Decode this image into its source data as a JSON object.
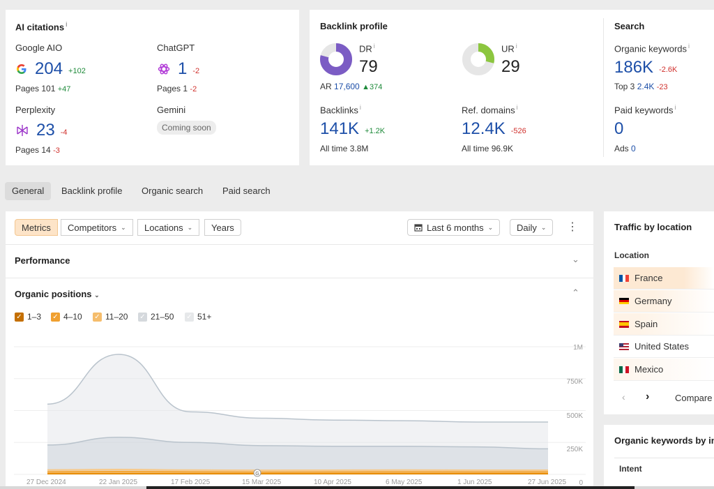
{
  "ai_citations": {
    "title": "AI citations",
    "info": "i",
    "google": {
      "name": "Google AIO",
      "value": "204",
      "delta": "+102",
      "pages_label": "Pages",
      "pages": "101",
      "pages_delta": "+47"
    },
    "chatgpt": {
      "name": "ChatGPT",
      "value": "1",
      "delta": "-2",
      "pages_label": "Pages",
      "pages": "1",
      "pages_delta": "-2"
    },
    "perplexity": {
      "name": "Perplexity",
      "value": "23",
      "delta": "-4",
      "pages_label": "Pages",
      "pages": "14",
      "pages_delta": "-3"
    },
    "gemini": {
      "name": "Gemini",
      "status": "Coming soon"
    }
  },
  "backlink_profile": {
    "title": "Backlink profile",
    "dr": {
      "label": "DR",
      "value": "79",
      "fill": 0.79
    },
    "ur": {
      "label": "UR",
      "value": "29",
      "fill": 0.29
    },
    "ar": {
      "label": "AR",
      "value": "17,600",
      "delta": "374"
    },
    "backlinks": {
      "label": "Backlinks",
      "value": "141K",
      "delta": "+1.2K",
      "alltime_label": "All time",
      "alltime": "3.8M"
    },
    "ref_domains": {
      "label": "Ref. domains",
      "value": "12.4K",
      "delta": "-526",
      "alltime_label": "All time",
      "alltime": "96.9K"
    }
  },
  "search": {
    "title": "Search",
    "organic": {
      "label": "Organic keywords",
      "value": "186K",
      "delta": "-2.6K",
      "top3_label": "Top 3",
      "top3": "2.4K",
      "top3_delta": "-23"
    },
    "paid": {
      "label": "Paid keywords",
      "value": "0",
      "ads_label": "Ads",
      "ads": "0"
    }
  },
  "tabs": [
    "General",
    "Backlink profile",
    "Organic search",
    "Paid search"
  ],
  "toolbar": {
    "segments": [
      "Metrics",
      "Competitors",
      "Locations",
      "Years"
    ],
    "date_range": "Last 6 months",
    "granularity": "Daily"
  },
  "sections": {
    "performance": "Performance",
    "organic_positions": "Organic positions"
  },
  "colors": {
    "dr_ring": "#7b5cc4",
    "ur_ring": "#8cc63f",
    "accent_orange": "#f0a030"
  },
  "chart_data": {
    "type": "area",
    "title": "Organic positions",
    "x_ticks": [
      "27 Dec 2024",
      "22 Jan 2025",
      "17 Feb 2025",
      "15 Mar 2025",
      "10 Apr 2025",
      "6 May 2025",
      "1 Jun 2025",
      "27 Jun 2025"
    ],
    "y_ticks": [
      "1M",
      "750K",
      "500K",
      "250K",
      "0"
    ],
    "ylim": [
      0,
      1000000
    ],
    "series": [
      {
        "name": "1–3",
        "color": "#e88a00",
        "values": [
          5000,
          5000,
          5000,
          5000,
          5000,
          5000,
          5000,
          5000
        ]
      },
      {
        "name": "4–10",
        "color": "#f4a83a",
        "values": [
          20000,
          22000,
          20000,
          18000,
          19000,
          20000,
          19000,
          20000
        ]
      },
      {
        "name": "11–20",
        "color": "#f7c98a",
        "values": [
          35000,
          38000,
          34000,
          32000,
          33000,
          34000,
          33000,
          33000
        ]
      },
      {
        "name": "21–50",
        "color": "#c7cfd6",
        "values": [
          230000,
          290000,
          250000,
          225000,
          220000,
          220000,
          215000,
          200000
        ]
      },
      {
        "name": "51+",
        "color": "#dfe3e7",
        "values": [
          550000,
          940000,
          490000,
          440000,
          425000,
          420000,
          410000,
          410000
        ]
      }
    ],
    "legend": [
      "1–3",
      "4–10",
      "11–20",
      "21–50",
      "51+"
    ]
  },
  "traffic_by_location": {
    "title": "Traffic by location",
    "column": "Location",
    "rows": [
      "France",
      "Germany",
      "Spain",
      "United States",
      "Mexico"
    ],
    "compare": "Compare"
  },
  "organic_keywords_intent": {
    "title": "Organic keywords by in",
    "column": "Intent"
  }
}
